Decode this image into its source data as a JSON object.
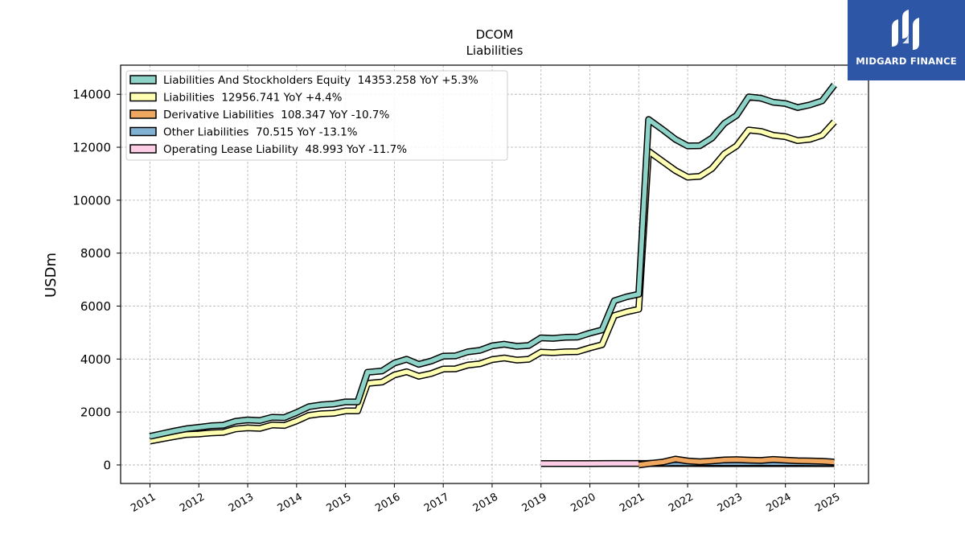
{
  "brand": {
    "name": "MIDGARD FINANCE",
    "bg": "#2e56a6"
  },
  "chart_data": {
    "type": "line",
    "title": "DCOM",
    "subtitle": "Liabilities",
    "ylabel": "USDm",
    "xlabel": "",
    "xlim": [
      2010.4,
      2025.7
    ],
    "ylim": [
      -700,
      15100
    ],
    "xticks": [
      "2011",
      "2012",
      "2013",
      "2014",
      "2015",
      "2016",
      "2017",
      "2018",
      "2019",
      "2020",
      "2021",
      "2022",
      "2023",
      "2024",
      "2025"
    ],
    "yticks": [
      0,
      2000,
      4000,
      6000,
      8000,
      10000,
      12000,
      14000
    ],
    "grid": true,
    "legend_position": "top-left",
    "series": [
      {
        "name": "Liabilities And Stockholders Equity",
        "legend": "Liabilities And Stockholders Equity  14353.258 YoY +5.3%",
        "color": "#8dd3c7",
        "points": [
          [
            2011.0,
            1080
          ],
          [
            2011.25,
            1180
          ],
          [
            2011.5,
            1280
          ],
          [
            2011.75,
            1370
          ],
          [
            2012.0,
            1420
          ],
          [
            2012.25,
            1480
          ],
          [
            2012.5,
            1500
          ],
          [
            2012.75,
            1650
          ],
          [
            2013.0,
            1700
          ],
          [
            2013.25,
            1680
          ],
          [
            2013.5,
            1800
          ],
          [
            2013.75,
            1790
          ],
          [
            2014.0,
            1980
          ],
          [
            2014.25,
            2200
          ],
          [
            2014.5,
            2270
          ],
          [
            2014.75,
            2300
          ],
          [
            2015.0,
            2380
          ],
          [
            2015.25,
            2380
          ],
          [
            2015.45,
            3500
          ],
          [
            2015.75,
            3550
          ],
          [
            2016.0,
            3850
          ],
          [
            2016.25,
            3990
          ],
          [
            2016.5,
            3800
          ],
          [
            2016.75,
            3920
          ],
          [
            2017.0,
            4110
          ],
          [
            2017.25,
            4120
          ],
          [
            2017.5,
            4270
          ],
          [
            2017.75,
            4330
          ],
          [
            2018.0,
            4500
          ],
          [
            2018.25,
            4560
          ],
          [
            2018.5,
            4480
          ],
          [
            2018.75,
            4510
          ],
          [
            2019.0,
            4800
          ],
          [
            2019.25,
            4780
          ],
          [
            2019.5,
            4820
          ],
          [
            2019.75,
            4830
          ],
          [
            2020.0,
            4980
          ],
          [
            2020.25,
            5100
          ],
          [
            2020.5,
            6200
          ],
          [
            2020.75,
            6350
          ],
          [
            2021.0,
            6450
          ],
          [
            2021.2,
            13050
          ],
          [
            2021.5,
            12650
          ],
          [
            2021.75,
            12300
          ],
          [
            2022.0,
            12050
          ],
          [
            2022.25,
            12060
          ],
          [
            2022.5,
            12350
          ],
          [
            2022.75,
            12900
          ],
          [
            2023.0,
            13200
          ],
          [
            2023.25,
            13900
          ],
          [
            2023.5,
            13850
          ],
          [
            2023.75,
            13700
          ],
          [
            2024.0,
            13650
          ],
          [
            2024.25,
            13500
          ],
          [
            2024.5,
            13600
          ],
          [
            2024.75,
            13750
          ],
          [
            2025.0,
            14353
          ]
        ]
      },
      {
        "name": "Liabilities",
        "legend": "Liabilities  12956.741 YoY +4.4%",
        "color": "#ffffb3",
        "points": [
          [
            2011.0,
            900
          ],
          [
            2011.25,
            990
          ],
          [
            2011.5,
            1070
          ],
          [
            2011.75,
            1150
          ],
          [
            2012.0,
            1170
          ],
          [
            2012.25,
            1210
          ],
          [
            2012.5,
            1230
          ],
          [
            2012.75,
            1360
          ],
          [
            2013.0,
            1400
          ],
          [
            2013.25,
            1380
          ],
          [
            2013.5,
            1510
          ],
          [
            2013.75,
            1490
          ],
          [
            2014.0,
            1660
          ],
          [
            2014.25,
            1870
          ],
          [
            2014.5,
            1930
          ],
          [
            2014.75,
            1950
          ],
          [
            2015.0,
            2040
          ],
          [
            2015.25,
            2040
          ],
          [
            2015.45,
            3080
          ],
          [
            2015.75,
            3130
          ],
          [
            2016.0,
            3400
          ],
          [
            2016.25,
            3520
          ],
          [
            2016.5,
            3350
          ],
          [
            2016.75,
            3450
          ],
          [
            2017.0,
            3620
          ],
          [
            2017.25,
            3630
          ],
          [
            2017.5,
            3770
          ],
          [
            2017.75,
            3820
          ],
          [
            2018.0,
            3980
          ],
          [
            2018.25,
            4040
          ],
          [
            2018.5,
            3960
          ],
          [
            2018.75,
            3990
          ],
          [
            2019.0,
            4260
          ],
          [
            2019.25,
            4240
          ],
          [
            2019.5,
            4270
          ],
          [
            2019.75,
            4280
          ],
          [
            2020.0,
            4420
          ],
          [
            2020.25,
            4540
          ],
          [
            2020.5,
            5640
          ],
          [
            2020.75,
            5780
          ],
          [
            2021.0,
            5880
          ],
          [
            2021.2,
            11850
          ],
          [
            2021.5,
            11450
          ],
          [
            2021.75,
            11120
          ],
          [
            2022.0,
            10870
          ],
          [
            2022.25,
            10900
          ],
          [
            2022.5,
            11200
          ],
          [
            2022.75,
            11750
          ],
          [
            2023.0,
            12050
          ],
          [
            2023.25,
            12650
          ],
          [
            2023.5,
            12600
          ],
          [
            2023.75,
            12450
          ],
          [
            2024.0,
            12400
          ],
          [
            2024.25,
            12250
          ],
          [
            2024.5,
            12300
          ],
          [
            2024.75,
            12450
          ],
          [
            2025.0,
            12957
          ]
        ]
      },
      {
        "name": "Derivative Liabilities",
        "legend": "Derivative Liabilities  108.347 YoY -10.7%",
        "color": "#f0a860",
        "points": [
          [
            2021.0,
            0
          ],
          [
            2021.25,
            60
          ],
          [
            2021.5,
            110
          ],
          [
            2021.75,
            220
          ],
          [
            2022.0,
            150
          ],
          [
            2022.25,
            120
          ],
          [
            2022.5,
            150
          ],
          [
            2022.75,
            190
          ],
          [
            2023.0,
            200
          ],
          [
            2023.25,
            180
          ],
          [
            2023.5,
            170
          ],
          [
            2023.75,
            210
          ],
          [
            2024.0,
            180
          ],
          [
            2024.25,
            160
          ],
          [
            2024.5,
            150
          ],
          [
            2024.75,
            140
          ],
          [
            2025.0,
            108
          ]
        ]
      },
      {
        "name": "Other Liabilities",
        "legend": "Other Liabilities  70.515 YoY -13.1%",
        "color": "#80b1d3",
        "points": [
          [
            2021.0,
            40
          ],
          [
            2021.25,
            60
          ],
          [
            2021.5,
            70
          ],
          [
            2021.75,
            80
          ],
          [
            2022.0,
            75
          ],
          [
            2022.25,
            80
          ],
          [
            2022.5,
            80
          ],
          [
            2022.75,
            85
          ],
          [
            2023.0,
            82
          ],
          [
            2023.25,
            85
          ],
          [
            2023.5,
            86
          ],
          [
            2023.75,
            83
          ],
          [
            2024.0,
            81
          ],
          [
            2024.25,
            80
          ],
          [
            2024.5,
            78
          ],
          [
            2024.75,
            75
          ],
          [
            2025.0,
            71
          ]
        ]
      },
      {
        "name": "Operating Lease Liability",
        "legend": "Operating Lease Liability  48.993 YoY -11.7%",
        "color": "#fccde5",
        "points": [
          [
            2019.0,
            50
          ],
          [
            2019.5,
            52
          ],
          [
            2020.0,
            55
          ],
          [
            2020.5,
            57
          ],
          [
            2021.0,
            58
          ],
          [
            2021.5,
            57
          ],
          [
            2022.0,
            56
          ],
          [
            2022.5,
            55
          ],
          [
            2023.0,
            54
          ],
          [
            2023.5,
            53
          ],
          [
            2024.0,
            52
          ],
          [
            2024.5,
            51
          ],
          [
            2025.0,
            49
          ]
        ]
      }
    ]
  }
}
